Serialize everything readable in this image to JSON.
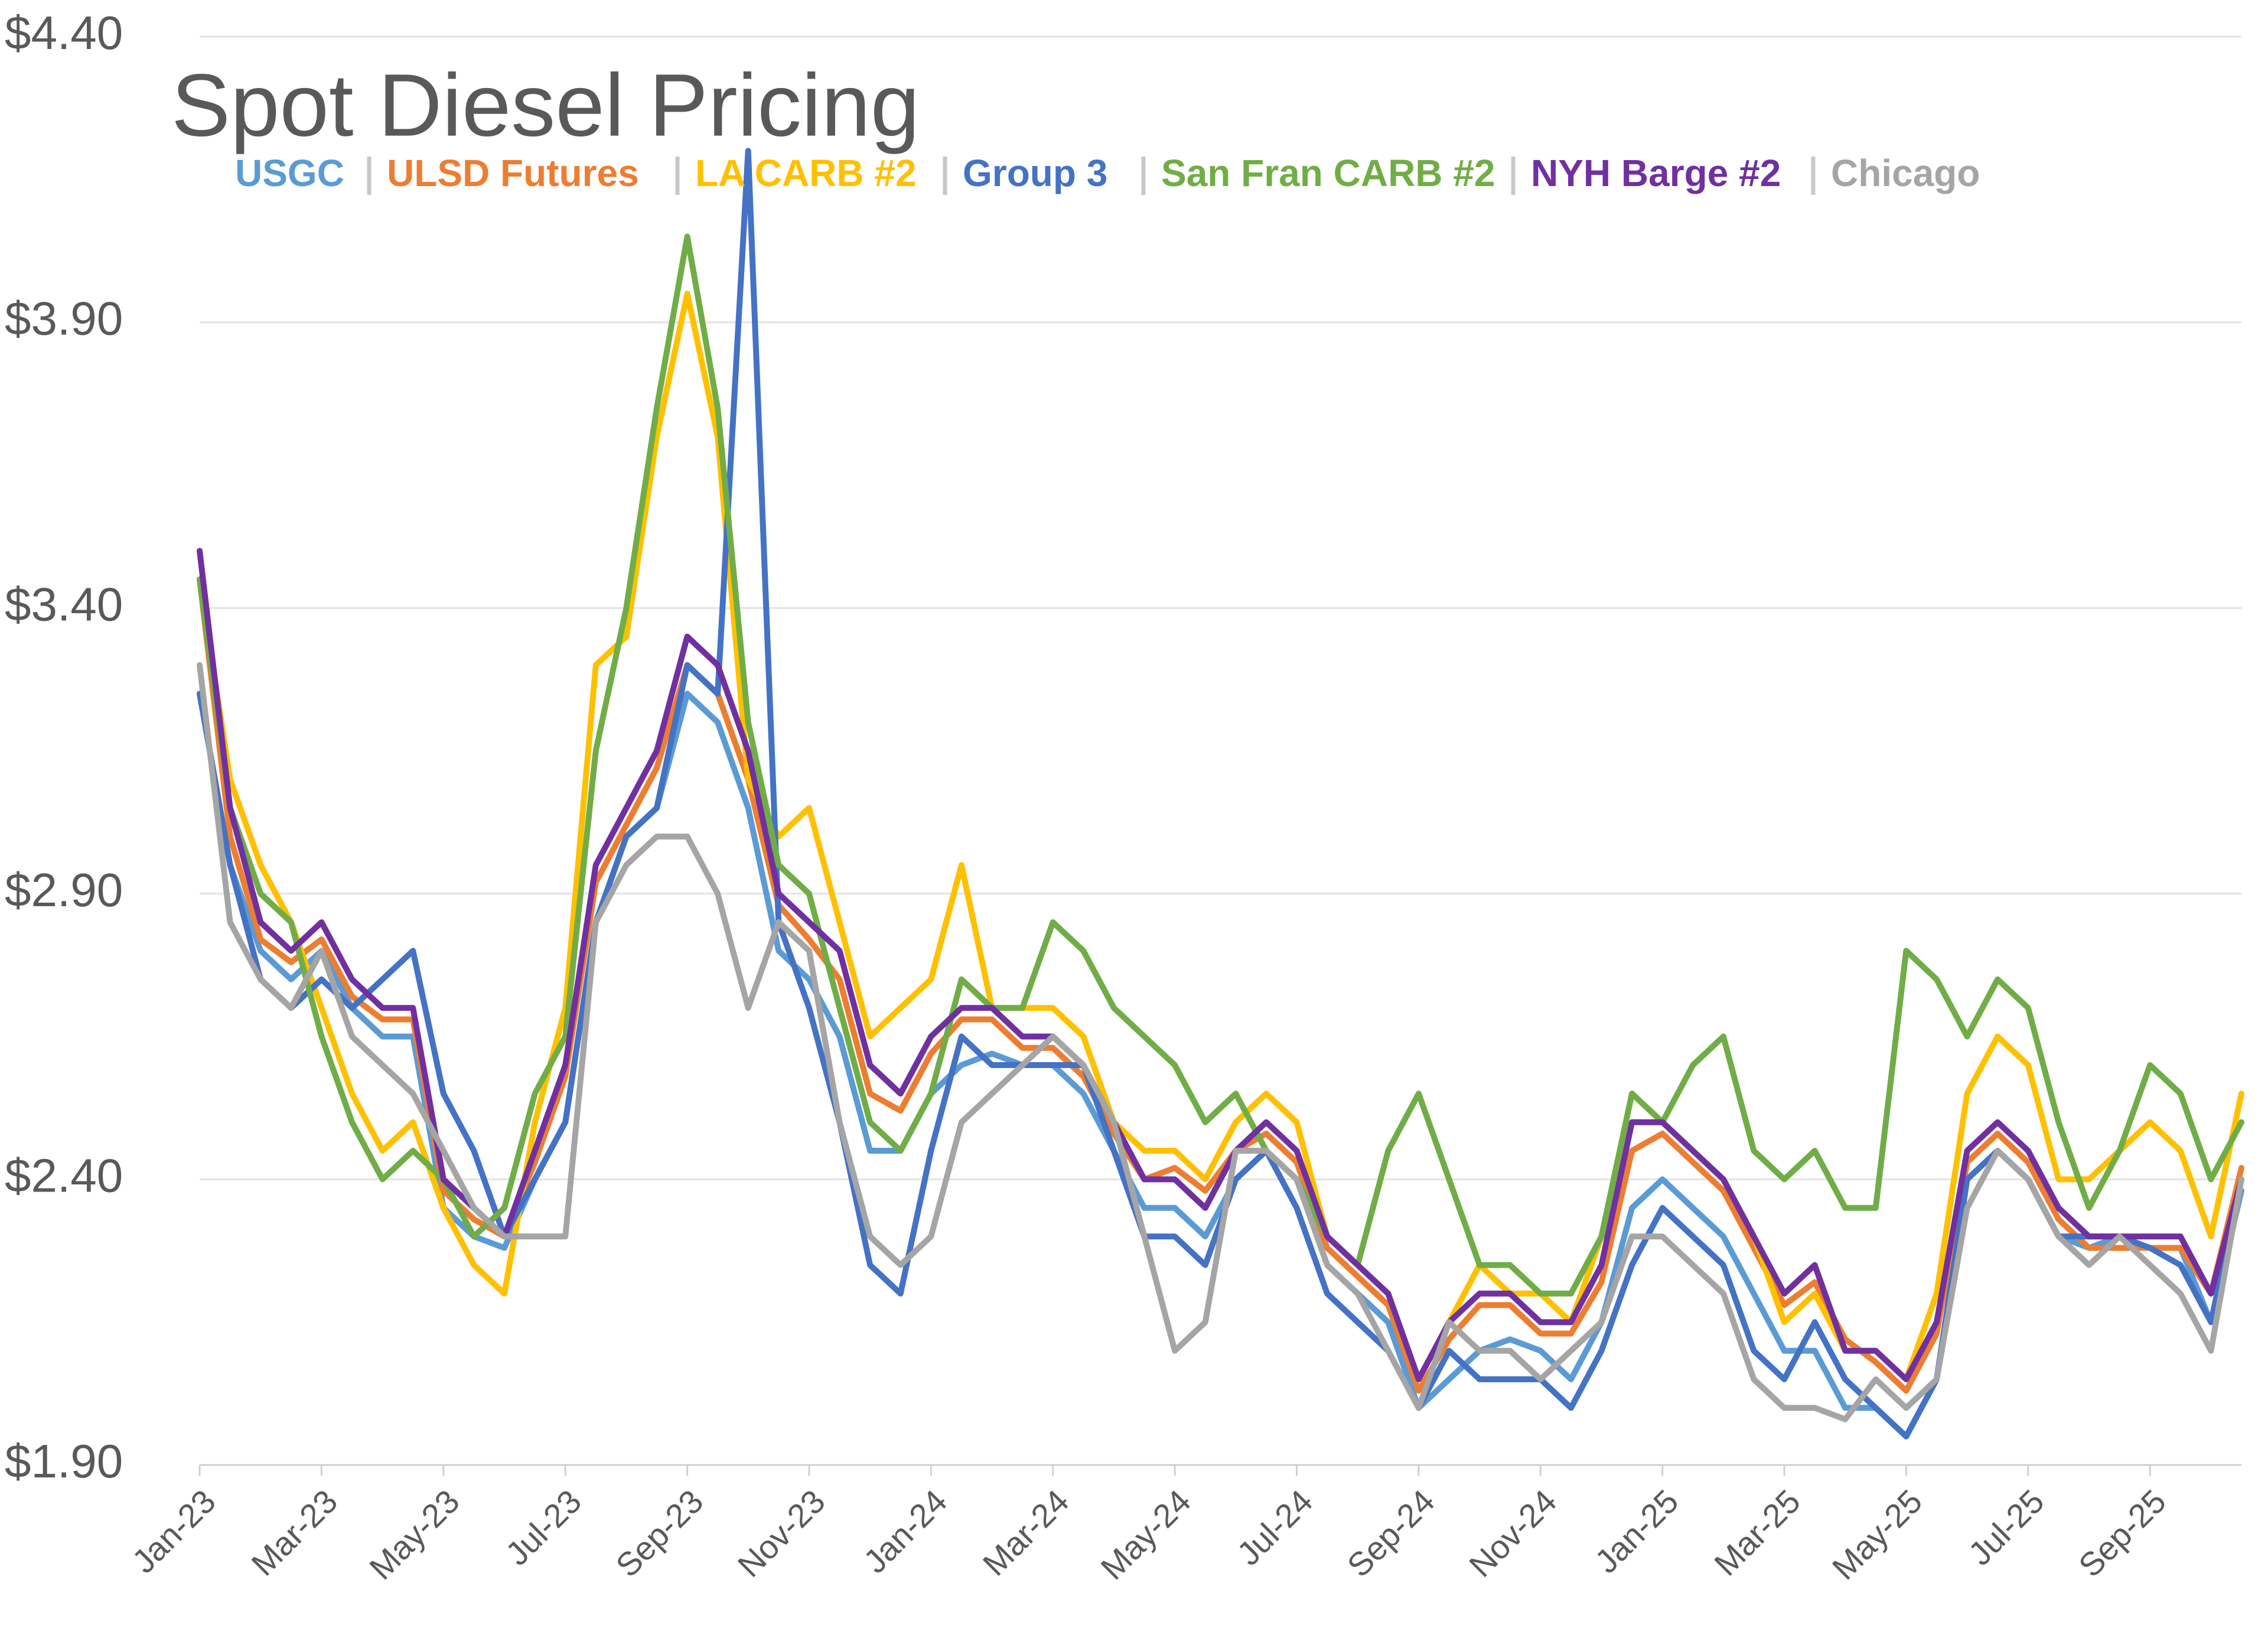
{
  "chart_data": {
    "type": "line",
    "title": "Spot Diesel Pricing",
    "categories": [
      "Jan-23",
      null,
      null,
      null,
      "Mar-23",
      null,
      null,
      null,
      "May-23",
      null,
      null,
      null,
      "Jul-23",
      null,
      null,
      null,
      "Sep-23",
      null,
      null,
      null,
      "Nov-23",
      null,
      null,
      null,
      "Jan-24",
      null,
      null,
      null,
      "Mar-24",
      null,
      null,
      null,
      "May-24",
      null,
      null,
      null,
      "Jul-24",
      null,
      null,
      null,
      "Sep-24",
      null,
      null,
      null,
      "Nov-24",
      null,
      null,
      null,
      "Jan-25",
      null,
      null,
      null,
      "Mar-25",
      null,
      null,
      null,
      "May-25",
      null,
      null,
      null,
      "Jul-25",
      null,
      null,
      null,
      "Sep-25",
      null,
      null,
      null
    ],
    "ylim": [
      1.9,
      4.4
    ],
    "yticks": [
      {
        "value": 1.9,
        "label": "$1.90"
      },
      {
        "value": 2.4,
        "label": "$2.40"
      },
      {
        "value": 2.9,
        "label": "$2.90"
      },
      {
        "value": 3.4,
        "label": "$3.40"
      },
      {
        "value": 3.9,
        "label": "$3.90"
      },
      {
        "value": 4.4,
        "label": "$4.40"
      }
    ],
    "grid": true,
    "series": [
      {
        "name": "USGC",
        "color": "#5b9bd5",
        "values": [
          3.25,
          2.95,
          2.8,
          2.75,
          2.8,
          2.7,
          2.65,
          2.65,
          2.35,
          2.3,
          2.28,
          2.4,
          2.5,
          2.85,
          3.0,
          3.05,
          3.25,
          3.2,
          3.05,
          2.8,
          2.75,
          2.65,
          2.45,
          2.45,
          2.55,
          2.6,
          2.62,
          2.6,
          2.6,
          2.55,
          2.45,
          2.35,
          2.35,
          2.3,
          2.4,
          2.45,
          2.4,
          2.25,
          2.2,
          2.15,
          2.0,
          2.05,
          2.1,
          2.12,
          2.1,
          2.05,
          2.15,
          2.35,
          2.4,
          2.35,
          2.3,
          2.2,
          2.1,
          2.1,
          2.0,
          2.0,
          1.95,
          2.05,
          2.4,
          2.45,
          2.4,
          2.3,
          2.28,
          2.3,
          2.28,
          2.28,
          2.15,
          2.38
        ]
      },
      {
        "name": "ULSD Futures",
        "color": "#ed7d31",
        "values": [
          3.45,
          3.0,
          2.82,
          2.78,
          2.82,
          2.72,
          2.68,
          2.68,
          2.38,
          2.33,
          2.3,
          2.43,
          2.58,
          2.92,
          3.02,
          3.12,
          3.3,
          3.25,
          3.1,
          2.88,
          2.82,
          2.75,
          2.55,
          2.52,
          2.62,
          2.68,
          2.68,
          2.63,
          2.63,
          2.58,
          2.48,
          2.4,
          2.42,
          2.38,
          2.45,
          2.48,
          2.43,
          2.28,
          2.23,
          2.18,
          2.03,
          2.12,
          2.18,
          2.18,
          2.13,
          2.13,
          2.22,
          2.45,
          2.48,
          2.43,
          2.38,
          2.28,
          2.18,
          2.22,
          2.12,
          2.08,
          2.03,
          2.13,
          2.43,
          2.48,
          2.43,
          2.33,
          2.28,
          2.28,
          2.28,
          2.28,
          2.2,
          2.42
        ]
      },
      {
        "name": "LA CARB #2",
        "color": "#ffc000",
        "values": [
          3.45,
          3.1,
          2.95,
          2.85,
          2.7,
          2.55,
          2.45,
          2.5,
          2.35,
          2.25,
          2.2,
          2.5,
          2.7,
          3.3,
          3.35,
          3.7,
          3.95,
          3.7,
          3.1,
          3.0,
          3.05,
          2.85,
          2.65,
          2.7,
          2.75,
          2.95,
          2.7,
          2.7,
          2.7,
          2.65,
          2.5,
          2.45,
          2.45,
          2.4,
          2.5,
          2.55,
          2.5,
          2.3,
          2.25,
          2.2,
          2.05,
          2.15,
          2.25,
          2.2,
          2.2,
          2.15,
          2.3,
          2.55,
          2.5,
          2.45,
          2.4,
          2.3,
          2.15,
          2.2,
          2.1,
          2.1,
          2.05,
          2.2,
          2.55,
          2.65,
          2.6,
          2.4,
          2.4,
          2.45,
          2.5,
          2.45,
          2.3,
          2.55
        ]
      },
      {
        "name": "Group 3",
        "color": "#4472c4",
        "values": [
          3.25,
          2.95,
          2.75,
          2.7,
          2.75,
          2.7,
          2.75,
          2.8,
          2.55,
          2.45,
          2.3,
          2.4,
          2.5,
          2.85,
          3.0,
          3.05,
          3.3,
          3.25,
          4.2,
          2.85,
          2.7,
          2.5,
          2.25,
          2.2,
          2.45,
          2.65,
          2.6,
          2.6,
          2.6,
          2.6,
          2.45,
          2.3,
          2.3,
          2.25,
          2.4,
          2.45,
          2.35,
          2.2,
          2.15,
          2.1,
          2.0,
          2.1,
          2.05,
          2.05,
          2.05,
          2.0,
          2.1,
          2.25,
          2.35,
          2.3,
          2.25,
          2.1,
          2.05,
          2.15,
          2.05,
          2.0,
          1.95,
          2.05,
          2.4,
          2.45,
          2.4,
          2.3,
          2.3,
          2.3,
          2.28,
          2.25,
          2.15,
          2.4
        ]
      },
      {
        "name": "San Fran CARB #2",
        "color": "#70ad47",
        "values": [
          3.45,
          3.05,
          2.9,
          2.85,
          2.65,
          2.5,
          2.4,
          2.45,
          2.4,
          2.3,
          2.35,
          2.55,
          2.65,
          3.15,
          3.4,
          3.75,
          4.05,
          3.75,
          3.2,
          2.95,
          2.9,
          2.7,
          2.5,
          2.45,
          2.55,
          2.75,
          2.7,
          2.7,
          2.85,
          2.8,
          2.7,
          2.65,
          2.6,
          2.5,
          2.55,
          2.45,
          2.4,
          2.3,
          2.25,
          2.45,
          2.55,
          2.4,
          2.25,
          2.25,
          2.2,
          2.2,
          2.3,
          2.55,
          2.5,
          2.6,
          2.65,
          2.45,
          2.4,
          2.45,
          2.35,
          2.35,
          2.8,
          2.75,
          2.65,
          2.75,
          2.7,
          2.5,
          2.35,
          2.45,
          2.6,
          2.55,
          2.4,
          2.5
        ]
      },
      {
        "name": "NYH Barge #2",
        "color": "#7030a0",
        "values": [
          3.5,
          3.05,
          2.85,
          2.8,
          2.85,
          2.75,
          2.7,
          2.7,
          2.4,
          2.35,
          2.3,
          2.45,
          2.6,
          2.95,
          3.05,
          3.15,
          3.35,
          3.3,
          3.15,
          2.9,
          2.85,
          2.8,
          2.6,
          2.55,
          2.65,
          2.7,
          2.7,
          2.65,
          2.65,
          2.6,
          2.5,
          2.4,
          2.4,
          2.35,
          2.45,
          2.5,
          2.45,
          2.3,
          2.25,
          2.2,
          2.05,
          2.15,
          2.2,
          2.2,
          2.15,
          2.15,
          2.25,
          2.5,
          2.5,
          2.45,
          2.4,
          2.3,
          2.2,
          2.25,
          2.1,
          2.1,
          2.05,
          2.15,
          2.45,
          2.5,
          2.45,
          2.35,
          2.3,
          2.3,
          2.3,
          2.3,
          2.2,
          2.4
        ]
      },
      {
        "name": "Chicago",
        "color": "#a5a5a5",
        "values": [
          3.3,
          2.85,
          2.75,
          2.7,
          2.8,
          2.65,
          2.6,
          2.55,
          2.45,
          2.35,
          2.3,
          2.3,
          2.3,
          2.85,
          2.95,
          3.0,
          3.0,
          2.9,
          2.7,
          2.85,
          2.8,
          2.5,
          2.3,
          2.25,
          2.3,
          2.5,
          2.55,
          2.6,
          2.65,
          2.6,
          2.5,
          2.3,
          2.1,
          2.15,
          2.45,
          2.45,
          2.4,
          2.25,
          2.2,
          2.1,
          2.0,
          2.15,
          2.1,
          2.1,
          2.05,
          2.1,
          2.15,
          2.3,
          2.3,
          2.25,
          2.2,
          2.05,
          2.0,
          2.0,
          1.98,
          2.05,
          2.0,
          2.05,
          2.35,
          2.45,
          2.4,
          2.3,
          2.25,
          2.3,
          2.25,
          2.2,
          2.1,
          2.4
        ]
      }
    ]
  }
}
